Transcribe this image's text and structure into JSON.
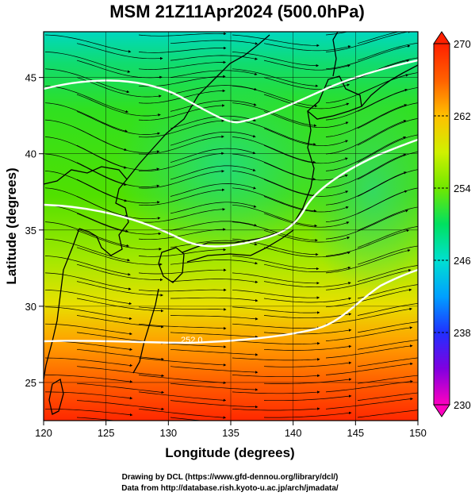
{
  "title": "MSM 21Z11Apr2024 (500.0hPa)",
  "xlabel": "Longitude (degrees)",
  "ylabel": "Latitude  (degrees)",
  "x_ticks": [
    "120",
    "125",
    "130",
    "135",
    "140",
    "145",
    "150"
  ],
  "y_ticks": [
    "25",
    "30",
    "35",
    "40",
    "45"
  ],
  "colorbar": {
    "ticks": [
      "270",
      "262",
      "254",
      "246",
      "238",
      "230"
    ],
    "min": 230,
    "max": 270
  },
  "contour_label": "252.0",
  "credits": {
    "line1": "Drawing by DCL (https://www.gfd-dennou.org/library/dcl/)",
    "line2": "Data from http://database.rish.kyoto-u.ac.jp/arch/jmadata/"
  },
  "map_extent": {
    "lon": [
      120,
      150
    ],
    "lat": [
      22.5,
      48
    ]
  },
  "colors": {
    "cold": "#00d8d0",
    "mid": "#44e000",
    "warm": "#ff2a00",
    "contour": "#ffffff",
    "streamline": "#000000"
  }
}
